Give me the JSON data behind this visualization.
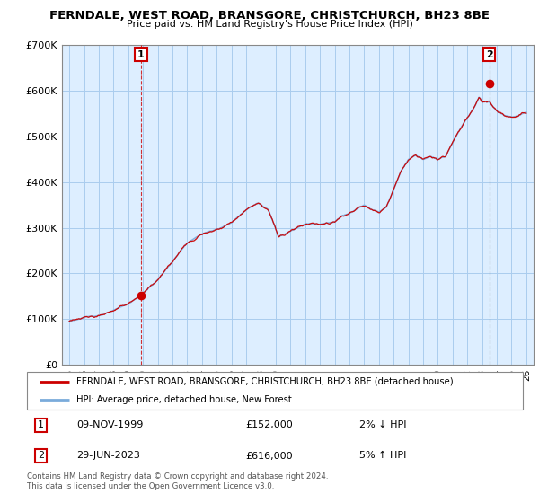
{
  "title": "FERNDALE, WEST ROAD, BRANSGORE, CHRISTCHURCH, BH23 8BE",
  "subtitle": "Price paid vs. HM Land Registry's House Price Index (HPI)",
  "ylabel_ticks": [
    "£0",
    "£100K",
    "£200K",
    "£300K",
    "£400K",
    "£500K",
    "£600K",
    "£700K"
  ],
  "ylim": [
    0,
    700000
  ],
  "xlim_start": 1994.5,
  "xlim_end": 2026.5,
  "sale1_date": 1999.86,
  "sale1_price": 152000,
  "sale2_date": 2023.49,
  "sale2_price": 616000,
  "annotation1_text": "1",
  "annotation2_text": "2",
  "legend_line1": "FERNDALE, WEST ROAD, BRANSGORE, CHRISTCHURCH, BH23 8BE (detached house)",
  "legend_line2": "HPI: Average price, detached house, New Forest",
  "table_row1": [
    "1",
    "09-NOV-1999",
    "£152,000",
    "2% ↓ HPI"
  ],
  "table_row2": [
    "2",
    "29-JUN-2023",
    "£616,000",
    "5% ↑ HPI"
  ],
  "footer": "Contains HM Land Registry data © Crown copyright and database right 2024.\nThis data is licensed under the Open Government Licence v3.0.",
  "line_color_red": "#cc0000",
  "line_color_blue": "#7aabdb",
  "plot_bg_color": "#ddeeff",
  "background_color": "#ffffff",
  "grid_color": "#aaccee"
}
